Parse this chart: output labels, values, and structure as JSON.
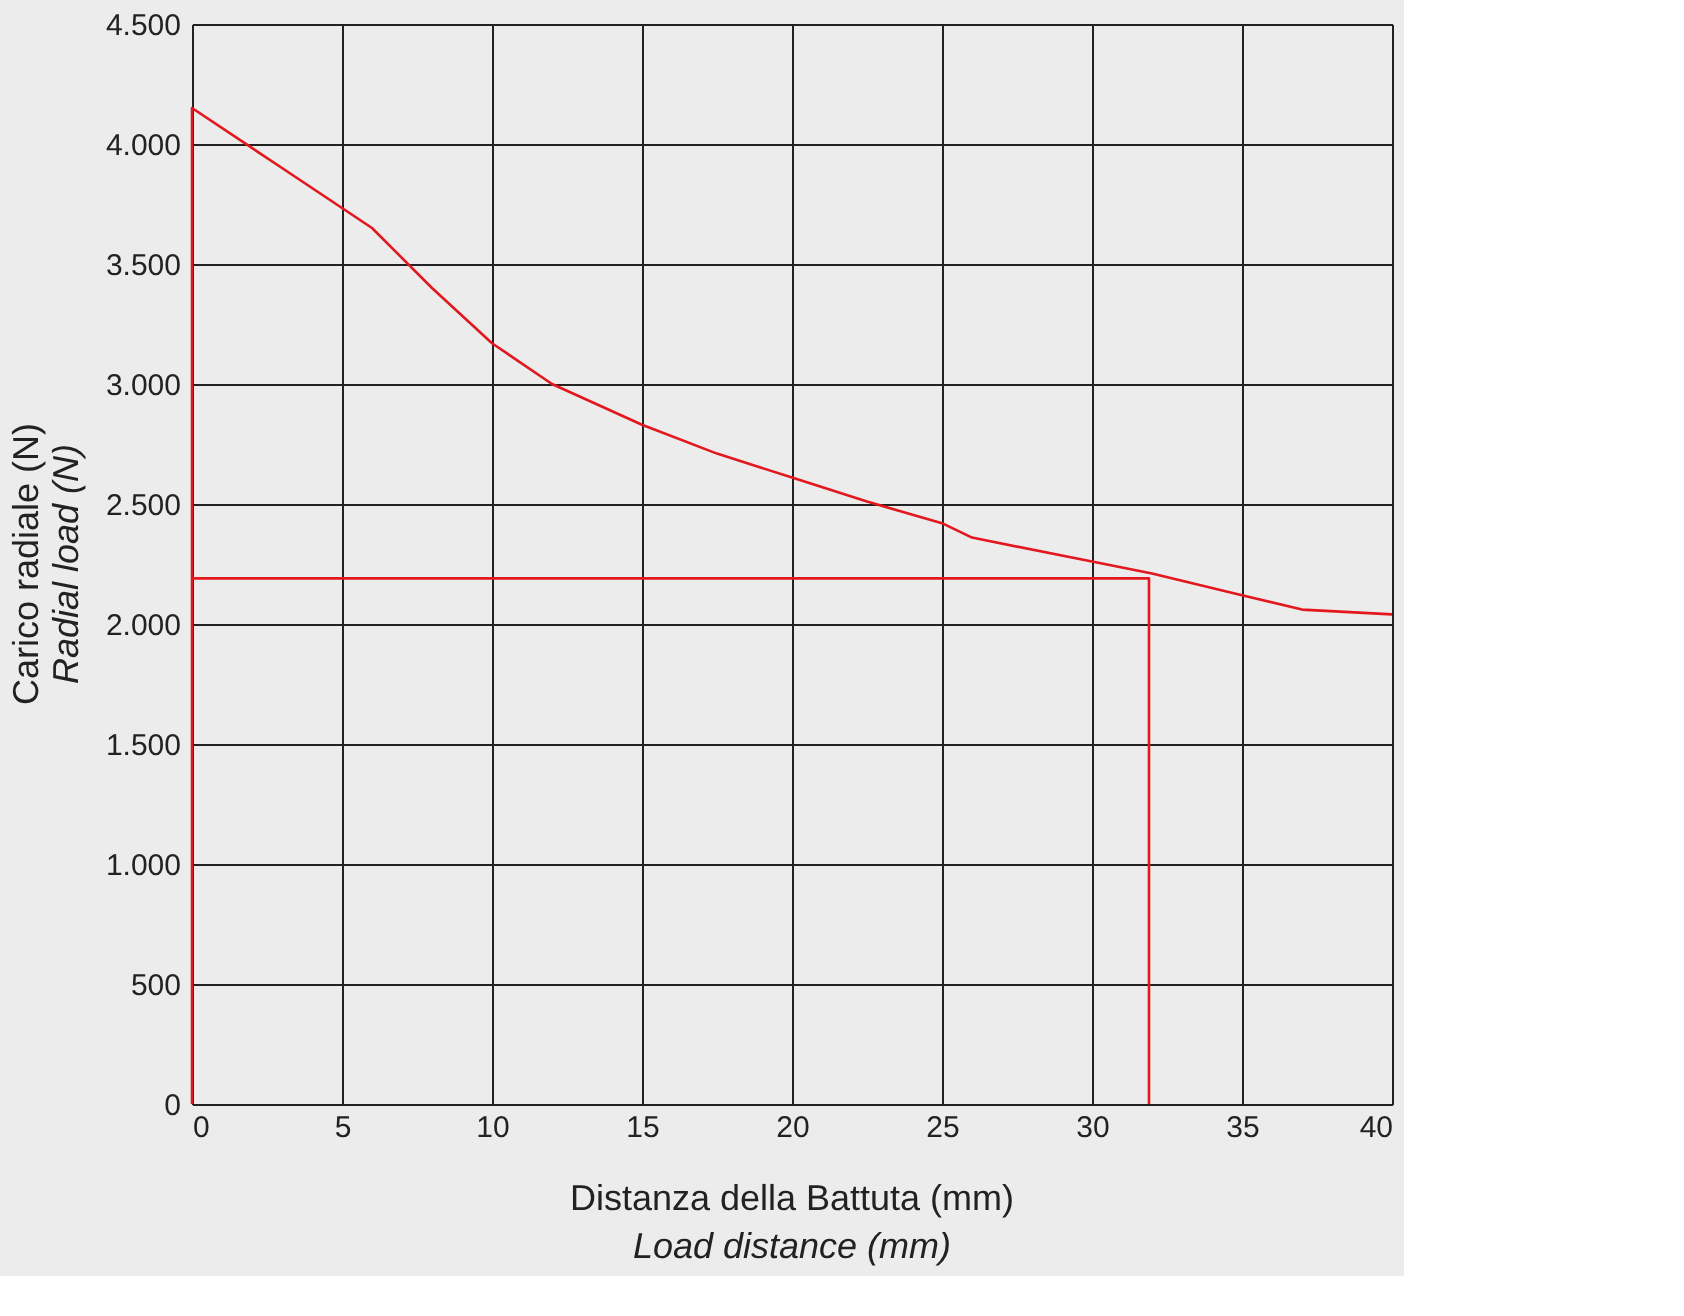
{
  "chart_data": {
    "type": "line",
    "xlabel": "Distanza della Battuta (mm)\nLoad distance (mm)",
    "ylabel": "Carico radiale (N)\nRadial load (N)",
    "series": [
      {
        "color": "#e3171e",
        "x": [
          0,
          0,
          3,
          6,
          8,
          10,
          12,
          15,
          17.5,
          20,
          22.5,
          25,
          26,
          30,
          32,
          35,
          37,
          40
        ],
        "values": [
          0,
          4150,
          3900,
          3650,
          3400,
          3170,
          3000,
          2830,
          2710,
          2610,
          2510,
          2420,
          2360,
          2260,
          2210,
          2120,
          2060,
          2040
        ]
      },
      {
        "color": "#e3171e",
        "x": [
          0,
          31.9,
          31.9
        ],
        "values": [
          2190,
          2190,
          0
        ]
      }
    ],
    "xlim": [
      0,
      40
    ],
    "xticks": [
      0,
      5,
      10,
      15,
      20,
      25,
      30,
      35,
      40
    ],
    "ylim": [
      0,
      4500
    ],
    "yticks": [
      0,
      {
        "value": 500,
        "label": "500"
      },
      {
        "value": 1000,
        "label": "1.000"
      },
      {
        "value": 1500,
        "label": "1.500"
      },
      {
        "value": 2000,
        "label": "2.000"
      },
      {
        "value": 2500,
        "label": "2.500"
      },
      {
        "value": 3000,
        "label": "3.000"
      },
      {
        "value": 3500,
        "label": "3.500"
      },
      {
        "value": 4000,
        "label": "4.000"
      },
      {
        "value": 4500,
        "label": "4.500"
      }
    ],
    "grid": true,
    "marker": "none",
    "line_style": "solid"
  }
}
